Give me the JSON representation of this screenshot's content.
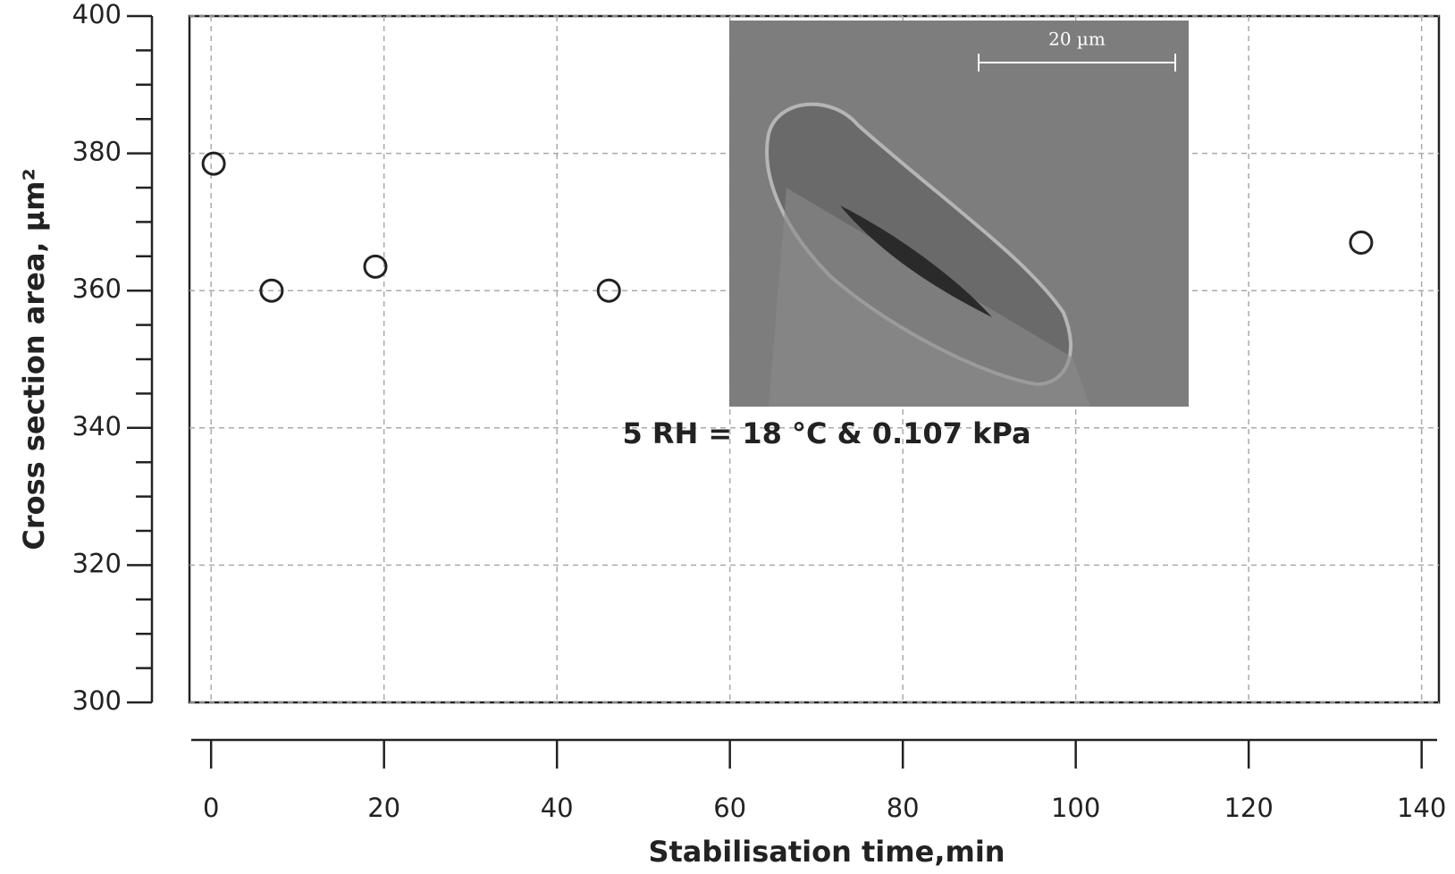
{
  "chart_data": {
    "type": "scatter",
    "x_label": "Stabilisation time,min",
    "y_label": "Cross section area, µm²",
    "annotation": "5 RH = 18 °C & 0.107 kPa",
    "inset_scale_label": "20 µm",
    "x": [
      0.3,
      7,
      19,
      46,
      133
    ],
    "values": [
      378.5,
      360,
      363.5,
      360,
      367
    ],
    "color": "#222222",
    "xlim": [
      -2.5,
      142
    ],
    "ylim": [
      300,
      400
    ],
    "xticks": [
      0,
      20,
      40,
      60,
      80,
      100,
      120,
      140
    ],
    "yticks": [
      300,
      320,
      340,
      360,
      380,
      400
    ],
    "yminorticks": [
      305,
      310,
      315,
      325,
      330,
      335,
      345,
      350,
      355,
      365,
      370,
      375,
      385,
      390,
      395
    ],
    "grid": true
  }
}
